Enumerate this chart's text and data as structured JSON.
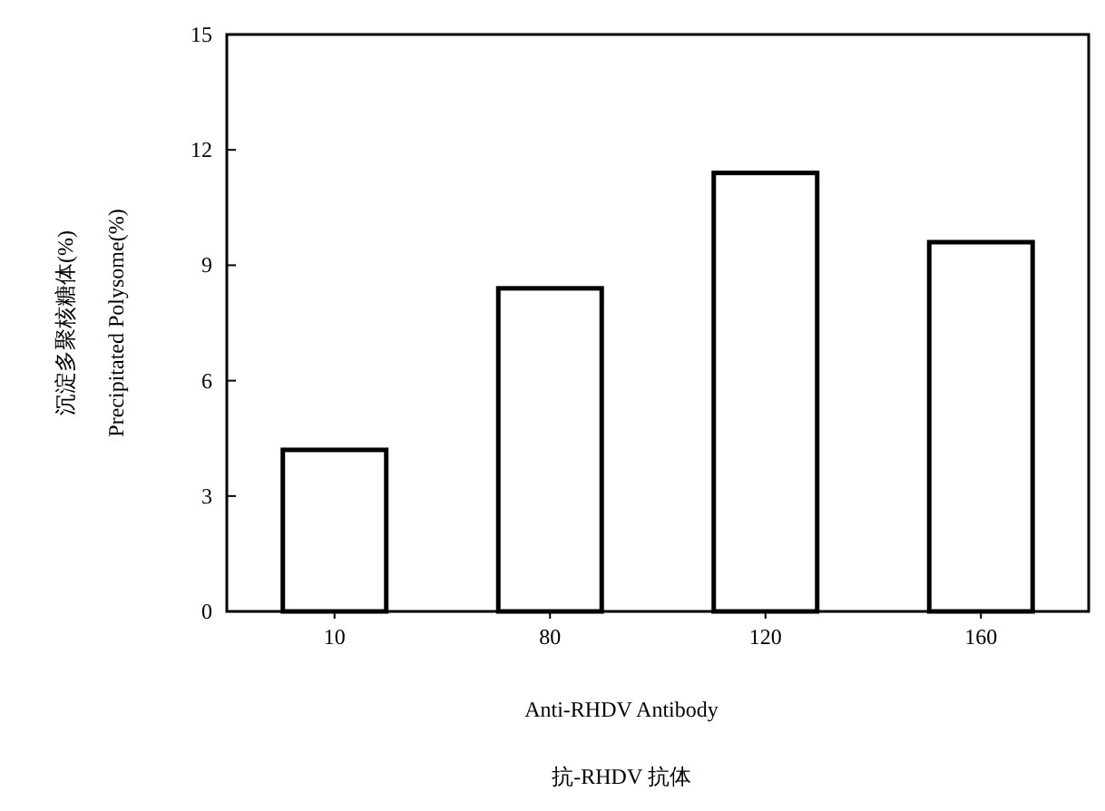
{
  "chart_data": {
    "type": "bar",
    "categories": [
      "10",
      "80",
      "120",
      "160"
    ],
    "values": [
      4.2,
      8.4,
      11.4,
      9.6
    ],
    "color": "#ffffff",
    "ylim": [
      0,
      15
    ],
    "yticks": [
      0,
      3,
      6,
      9,
      12,
      15
    ],
    "ylabel": "Precipitated Polysome(%)",
    "xlabel": "Anti-RHDV Antibody",
    "annotations": [
      "沉淀多聚核糖体(%)",
      "抗-RHDV 抗体"
    ]
  }
}
